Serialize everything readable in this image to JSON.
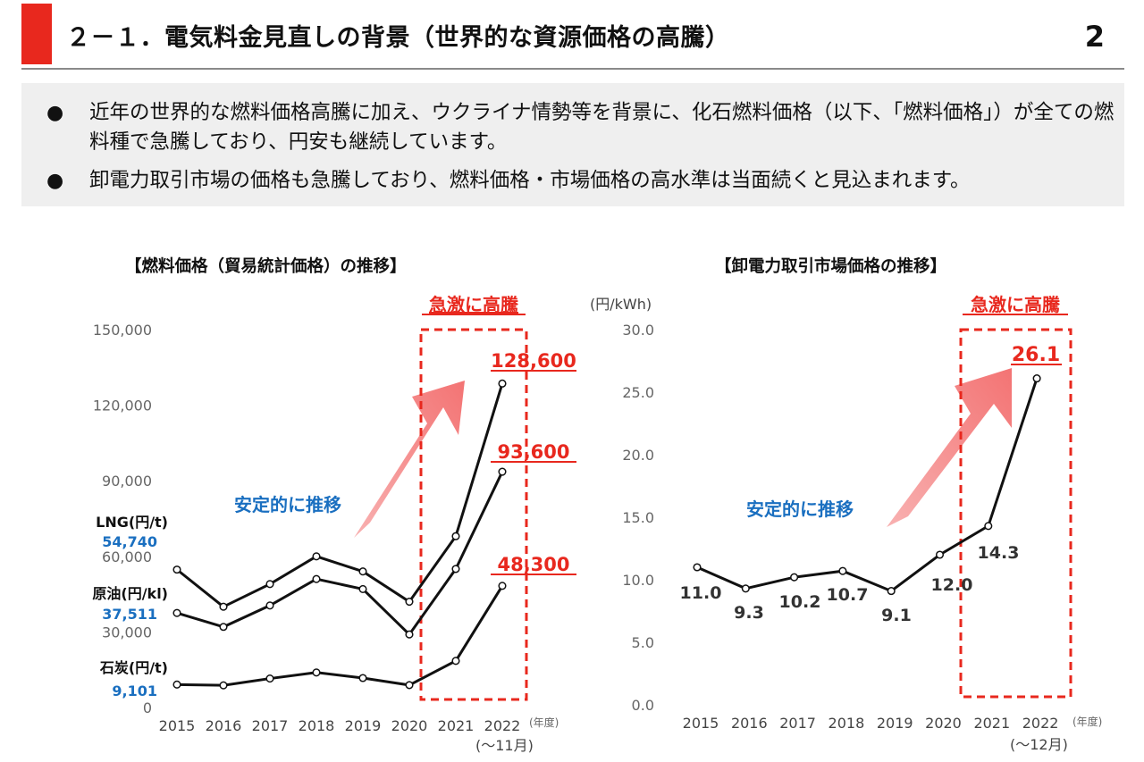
{
  "header": {
    "title": "２－１．電気料金見直しの背景（世界的な資源価格の高騰）",
    "page_number": "2"
  },
  "bullets": [
    "近年の世界的な燃料価格高騰に加え、ウクライナ情勢等を背景に、化石燃料価格（以下、「燃料価格」）が全ての燃料種で急騰しており、円安も継続しています。",
    "卸電力取引市場の価格も急騰しており、燃料価格・市場価格の高水準は当面続くと見込まれます。"
  ],
  "colors": {
    "accent": "#e8281e",
    "callout_red": "#e8281e",
    "stable_blue": "#1a6fc0",
    "line": "#111111",
    "arrow": "#f47c7c"
  },
  "chart_data": [
    {
      "type": "line",
      "title": "【燃料価格（貿易統計価格）の推移】",
      "categories": [
        "2015",
        "2016",
        "2017",
        "2018",
        "2019",
        "2020",
        "2021",
        "2022"
      ],
      "x_unit": "(年度)",
      "x_note": "(～11月)",
      "ylim": [
        0,
        150000
      ],
      "yticks": [
        "0",
        "30,000",
        "60,000",
        "90,000",
        "120,000",
        "150,000"
      ],
      "series": [
        {
          "name": "LNG(円/t)",
          "start_label": "54,740",
          "end_label": "128,600",
          "values": [
            54740,
            40000,
            49000,
            60000,
            54000,
            42000,
            68000,
            128600
          ]
        },
        {
          "name": "原油(円/kl)",
          "start_label": "37,511",
          "end_label": "93,600",
          "values": [
            37511,
            32000,
            40500,
            51000,
            47000,
            29000,
            55000,
            93600
          ]
        },
        {
          "name": "石炭(円/t)",
          "start_label": "9,101",
          "end_label": "48,300",
          "values": [
            9101,
            8800,
            11500,
            13900,
            11700,
            8900,
            18500,
            48300
          ]
        }
      ],
      "stable_label": "安定的に推移",
      "surge_label": "急激に高騰"
    },
    {
      "type": "line",
      "title": "【卸電力取引市場価格の推移】",
      "unit_label": "(円/kWh)",
      "categories": [
        "2015",
        "2016",
        "2017",
        "2018",
        "2019",
        "2020",
        "2021",
        "2022"
      ],
      "x_unit": "(年度)",
      "x_note": "(～12月)",
      "ylim": [
        0,
        30
      ],
      "yticks": [
        "0.0",
        "5.0",
        "10.0",
        "15.0",
        "20.0",
        "25.0",
        "30.0"
      ],
      "series": [
        {
          "values": [
            11.0,
            9.3,
            10.2,
            10.7,
            9.1,
            12.0,
            14.3,
            26.1
          ],
          "labels": [
            "11.0",
            "9.3",
            "10.2",
            "10.7",
            "9.1",
            "12.0",
            "14.3",
            "26.1"
          ]
        }
      ],
      "stable_label": "安定的に推移",
      "surge_label": "急激に高騰"
    }
  ]
}
